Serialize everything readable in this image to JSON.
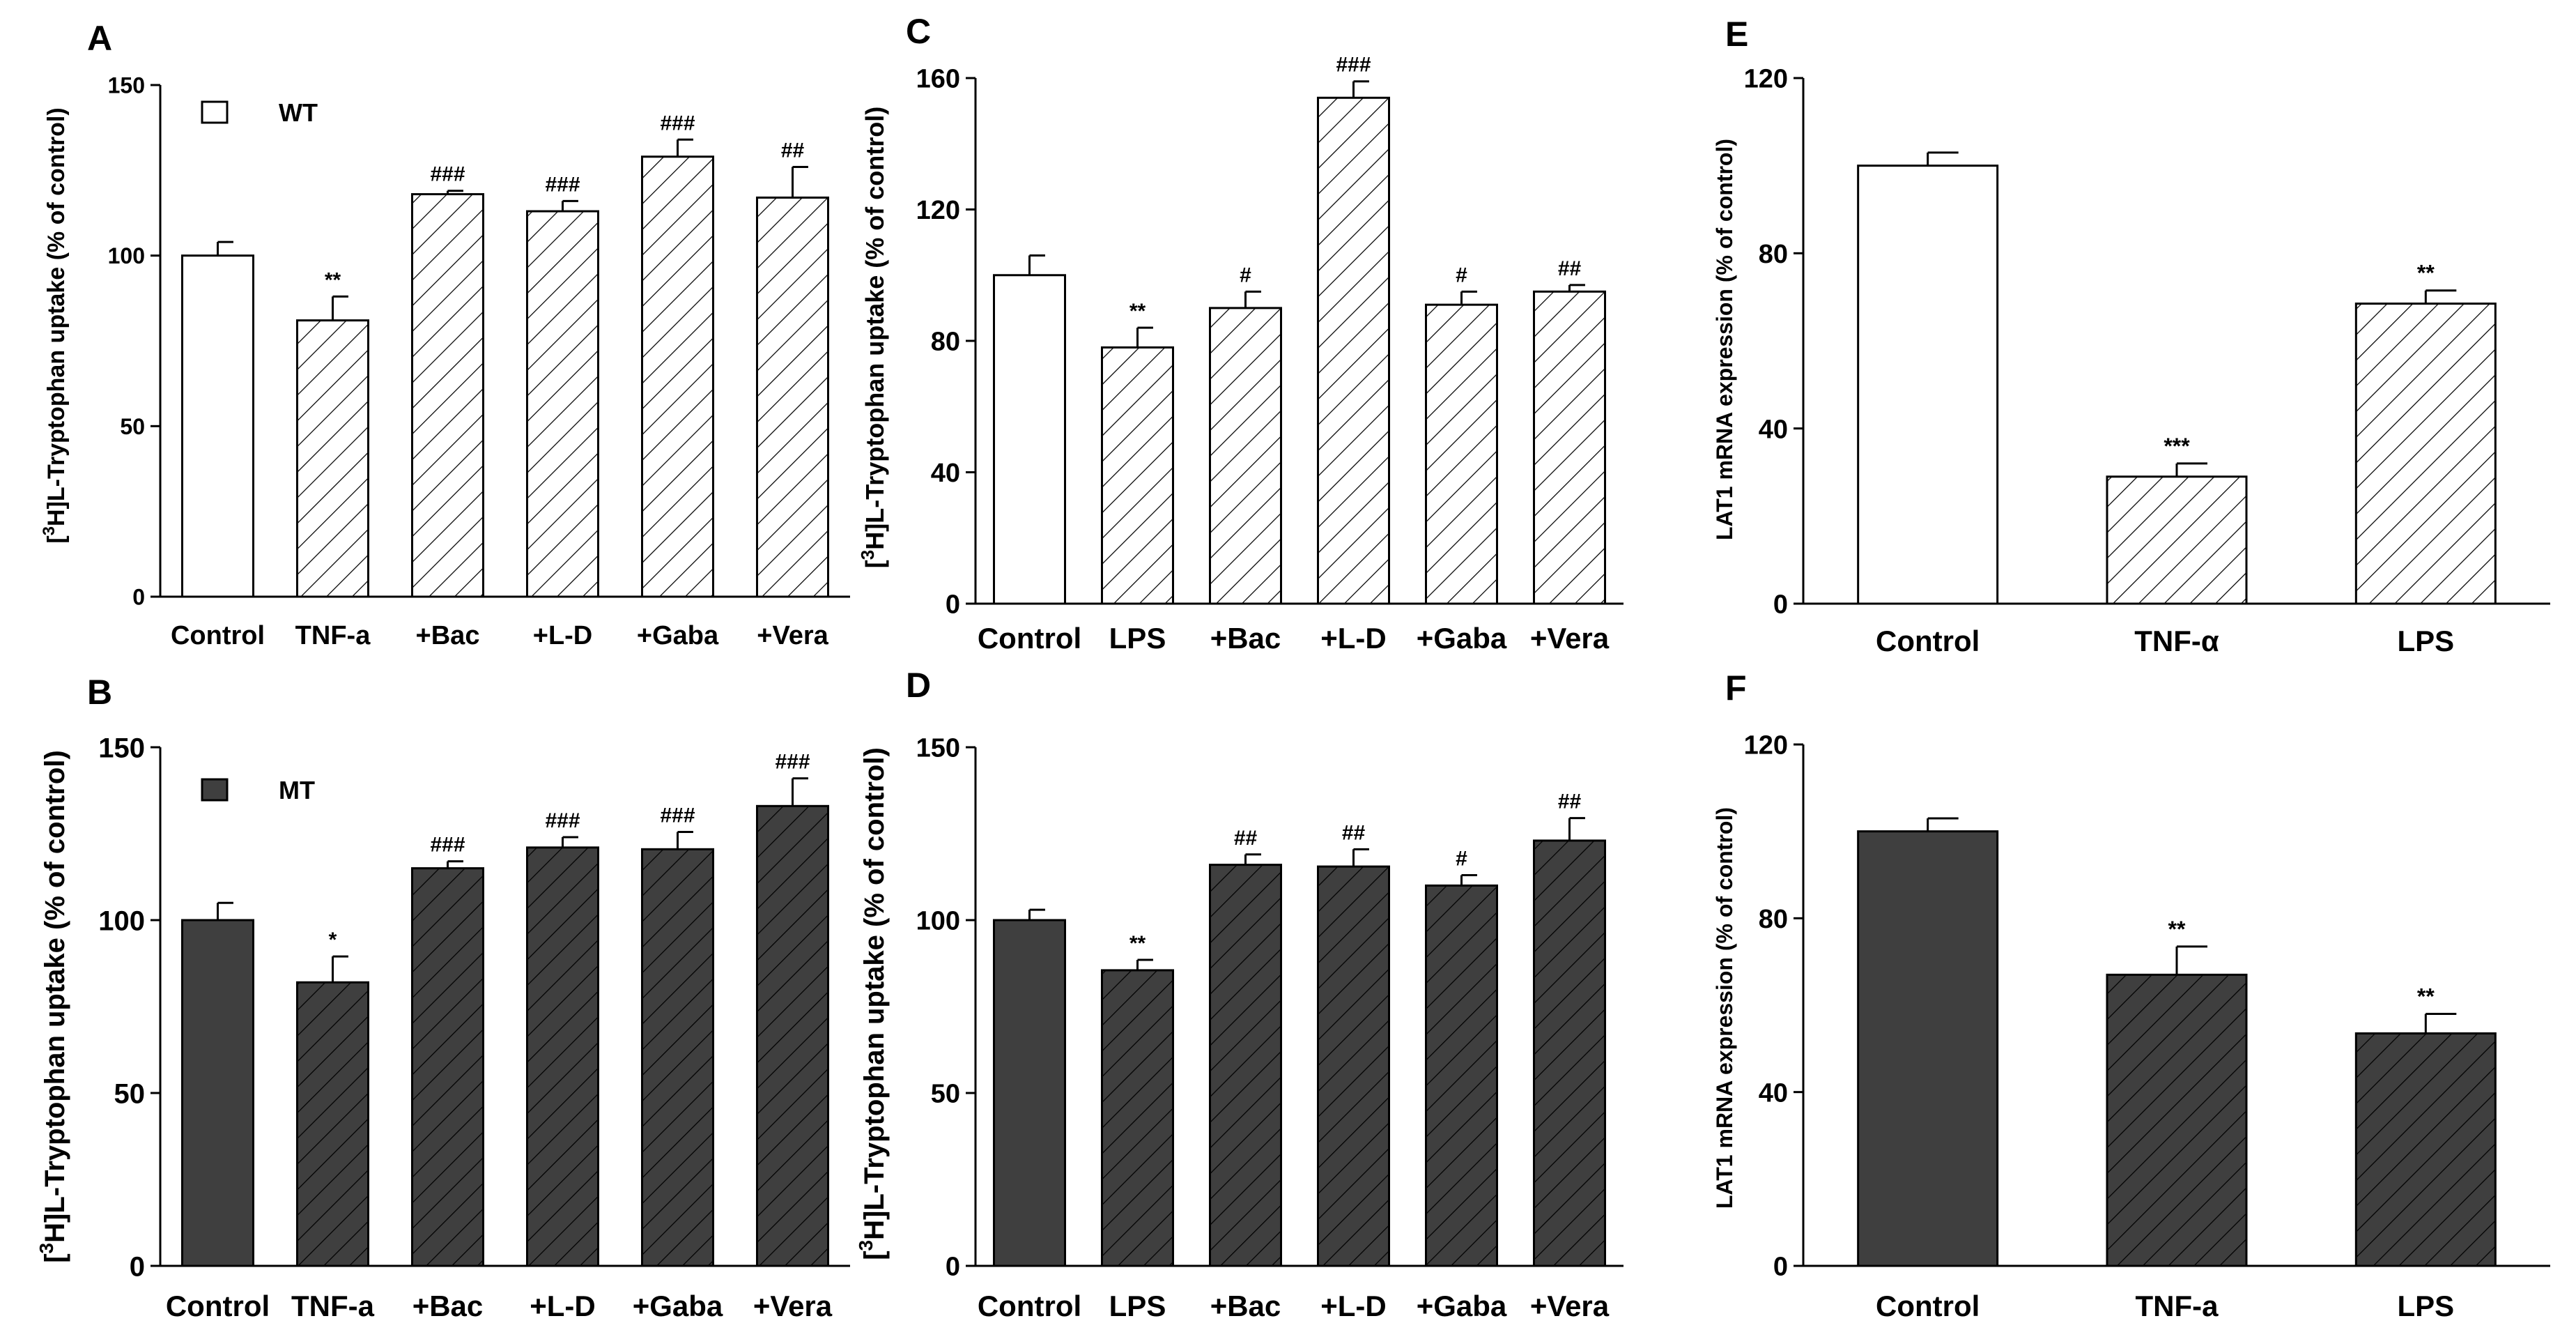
{
  "colors": {
    "wt_fill": "#ffffff",
    "mt_fill": "#3f3f3f",
    "edge": "#000000",
    "hatch_light": "#000000",
    "hatch_dark": "#000000"
  },
  "chart_data": [
    {
      "id": "A",
      "panel_label": "A",
      "type": "bar",
      "ylim": [
        0,
        150
      ],
      "yticks": [
        0,
        50,
        100,
        150
      ],
      "ylabel_pre": "[",
      "ylabel_sup": "3",
      "ylabel_post": "H]L-Tryptophan uptake (% of control)",
      "style": "light",
      "categories": [
        "Control",
        "TNF-a",
        "+Bac",
        "+L-D",
        "+Gaba",
        "+Vera"
      ],
      "values": [
        100,
        81,
        118,
        113,
        129,
        117
      ],
      "errors": [
        4,
        7,
        1,
        3,
        5,
        9
      ],
      "annotations": [
        "",
        "**",
        "###",
        "###",
        "###",
        "##"
      ],
      "legend": {
        "label": "WT",
        "swatch": "wt"
      }
    },
    {
      "id": "B",
      "panel_label": "B",
      "type": "bar",
      "ylim": [
        0,
        150
      ],
      "yticks": [
        0,
        50,
        100,
        150
      ],
      "ylabel_pre": "[",
      "ylabel_sup": "3",
      "ylabel_post": "H]L-Tryptophan uptake (% of control)",
      "style": "dark",
      "categories": [
        "Control",
        "TNF-a",
        "+Bac",
        "+L-D",
        "+Gaba",
        "+Vera"
      ],
      "values": [
        100,
        82,
        115,
        121,
        120.5,
        133
      ],
      "errors": [
        5,
        7.5,
        2,
        3,
        5,
        8
      ],
      "annotations": [
        "",
        "*",
        "###",
        "###",
        "###",
        "###"
      ],
      "legend": {
        "label": "MT",
        "swatch": "mt"
      }
    },
    {
      "id": "C",
      "panel_label": "C",
      "type": "bar",
      "ylim": [
        0,
        160
      ],
      "yticks": [
        0,
        40,
        80,
        120,
        160
      ],
      "ylabel_pre": "[",
      "ylabel_sup": "3",
      "ylabel_post": "H]L-Tryptophan uptake (% of control)",
      "style": "light",
      "categories": [
        "Control",
        "LPS",
        "+Bac",
        "+L-D",
        "+Gaba",
        "+Vera"
      ],
      "values": [
        100,
        78,
        90,
        154,
        91,
        95
      ],
      "errors": [
        6,
        6,
        5,
        5,
        4,
        2
      ],
      "annotations": [
        "",
        "**",
        "#",
        "###",
        "#",
        "##"
      ]
    },
    {
      "id": "D",
      "panel_label": "D",
      "type": "bar",
      "ylim": [
        0,
        150
      ],
      "yticks": [
        0,
        50,
        100,
        150
      ],
      "ylabel_pre": "[",
      "ylabel_sup": "3",
      "ylabel_post": "H]L-Tryptophan uptake (% of control)",
      "style": "dark",
      "categories": [
        "Control",
        "LPS",
        "+Bac",
        "+L-D",
        "+Gaba",
        "+Vera"
      ],
      "values": [
        100,
        85.5,
        116,
        115.5,
        110,
        123
      ],
      "errors": [
        3,
        3,
        3,
        5,
        3,
        6.5
      ],
      "annotations": [
        "",
        "**",
        "##",
        "##",
        "#",
        "##"
      ]
    },
    {
      "id": "E",
      "panel_label": "E",
      "type": "bar",
      "ylim": [
        0,
        120
      ],
      "yticks": [
        0,
        40,
        80,
        120
      ],
      "ylabel": "LAT1 mRNA expression (% of control)",
      "style": "light",
      "categories": [
        "Control",
        "TNF-α",
        "LPS"
      ],
      "values": [
        100,
        29,
        68.5
      ],
      "errors": [
        3,
        3,
        3
      ],
      "annotations": [
        "",
        "***",
        "**"
      ]
    },
    {
      "id": "F",
      "panel_label": "F",
      "type": "bar",
      "ylim": [
        0,
        120
      ],
      "yticks": [
        0,
        40,
        80,
        120
      ],
      "ylabel": "LAT1 mRNA expression (% of control)",
      "style": "dark",
      "categories": [
        "Control",
        "TNF-a",
        "LPS"
      ],
      "values": [
        100,
        67,
        53.5
      ],
      "errors": [
        3,
        6.5,
        4.5
      ],
      "annotations": [
        "",
        "**",
        "**"
      ]
    }
  ]
}
